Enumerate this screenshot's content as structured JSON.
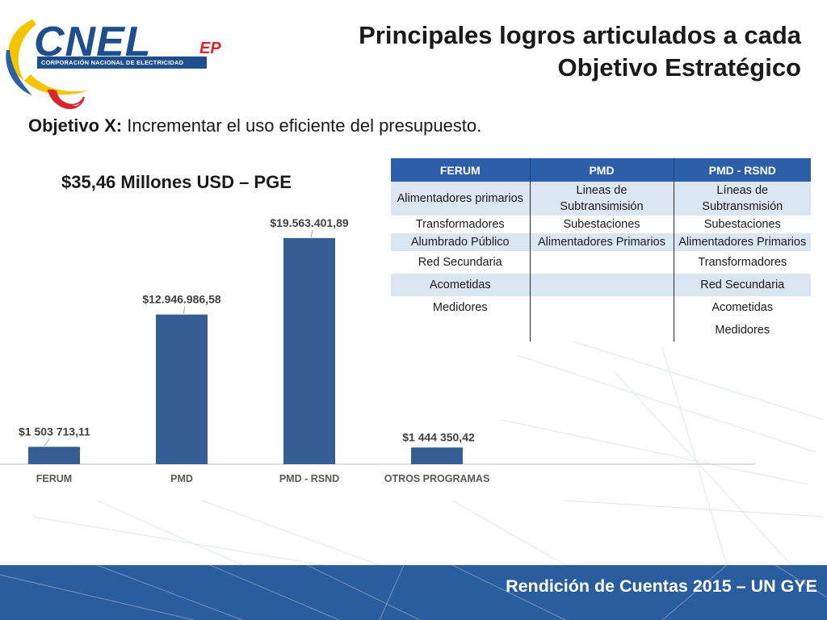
{
  "logo": {
    "wordmark": "CNEL",
    "suffix": "EP",
    "tagline": "CORPORACIÓN NACIONAL DE ELECTRICIDAD"
  },
  "title": {
    "line1": "Principales logros articulados a cada",
    "line2": "Objetivo Estratégico"
  },
  "objective": {
    "label": "Objetivo X:",
    "text": " Incrementar el uso eficiente del presupuesto."
  },
  "colors": {
    "bar": "#355e95",
    "table_header": "#2c5fa8",
    "table_band": "#dbe6f3",
    "footer_bg": "#2a5d9e"
  },
  "chart_data": {
    "type": "bar",
    "title": "$35,46 Millones USD – PGE",
    "categories": [
      "FERUM",
      "PMD",
      "PMD - RSND",
      "OTROS PROGRAMAS"
    ],
    "values": [
      1503713.11,
      12946986.58,
      19563401.89,
      1444350.42
    ],
    "data_labels": [
      "$1 503 713,11",
      "$12.946.986,58",
      "$19.563.401,89",
      "$1 444 350,42"
    ],
    "ylim": [
      0,
      22000000
    ],
    "grid": false,
    "xlabel": "",
    "ylabel": ""
  },
  "table": {
    "headers": [
      "FERUM",
      "PMD",
      "PMD - RSND"
    ],
    "rows": [
      [
        "Alimentadores primarios",
        "Lineas de Subtransimisión",
        "Líneas de Subtransmisión"
      ],
      [
        "Transformadores",
        "Subestaciones",
        "Subestaciones"
      ],
      [
        "Alumbrado Público",
        "Alimentadores Primarios",
        "Alimentadores Primarios"
      ],
      [
        "Red Secundaria",
        "",
        "Transformadores"
      ],
      [
        "Acometidas",
        "",
        "Red Secundaria"
      ],
      [
        "Medidores",
        "",
        "Acometidas"
      ],
      [
        "",
        "",
        "Medidores"
      ]
    ]
  },
  "footer": {
    "text": "Rendición de Cuentas 2015 – UN GYE"
  }
}
